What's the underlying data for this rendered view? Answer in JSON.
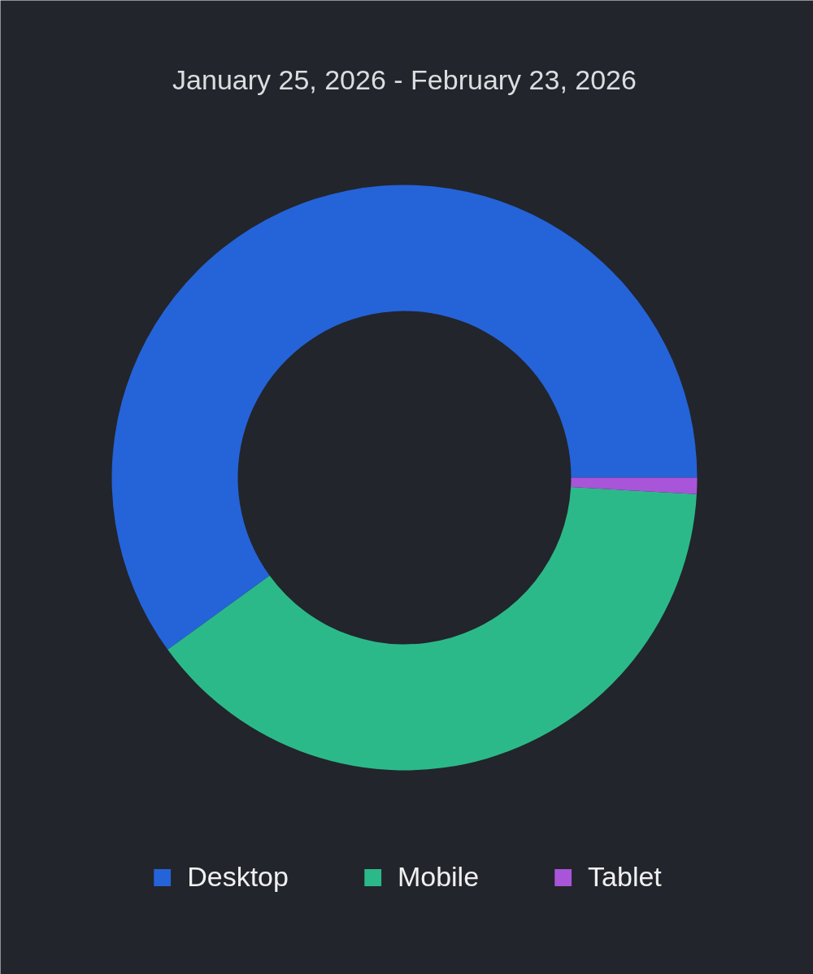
{
  "chart_data": {
    "type": "donut",
    "title": "January 25, 2026 - February 23, 2026",
    "categories": [
      "Desktop",
      "Mobile",
      "Tablet"
    ],
    "values": [
      60,
      39.1,
      0.9
    ],
    "colors": [
      "#2563d9",
      "#2cb98a",
      "#a855d9"
    ],
    "legend": "bottom"
  }
}
